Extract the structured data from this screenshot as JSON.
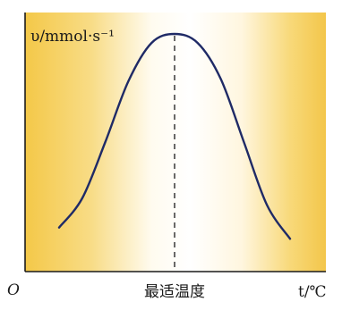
{
  "chart_data": {
    "type": "line",
    "ylabel": "υ/mmol·s⁻¹",
    "xlabel": "t/℃",
    "origin_label": "O",
    "x_tick_labels": [
      "最适温度"
    ],
    "curve": {
      "shape": "bell",
      "peak_marker": "dashed-vertical-line"
    },
    "values": {
      "x": [
        0,
        0.1,
        0.2,
        0.3,
        0.4,
        0.5,
        0.6,
        0.7,
        0.8,
        0.9,
        1.0
      ],
      "y": [
        0.14,
        0.27,
        0.52,
        0.79,
        0.96,
        1.0,
        0.96,
        0.8,
        0.52,
        0.24,
        0.09
      ]
    },
    "background_gradient_colors": [
      "#f4cc55",
      "#ffffff",
      "#f6d16a"
    ],
    "curve_color": "#1f2a66",
    "axis_color": "#1a1a1a"
  }
}
